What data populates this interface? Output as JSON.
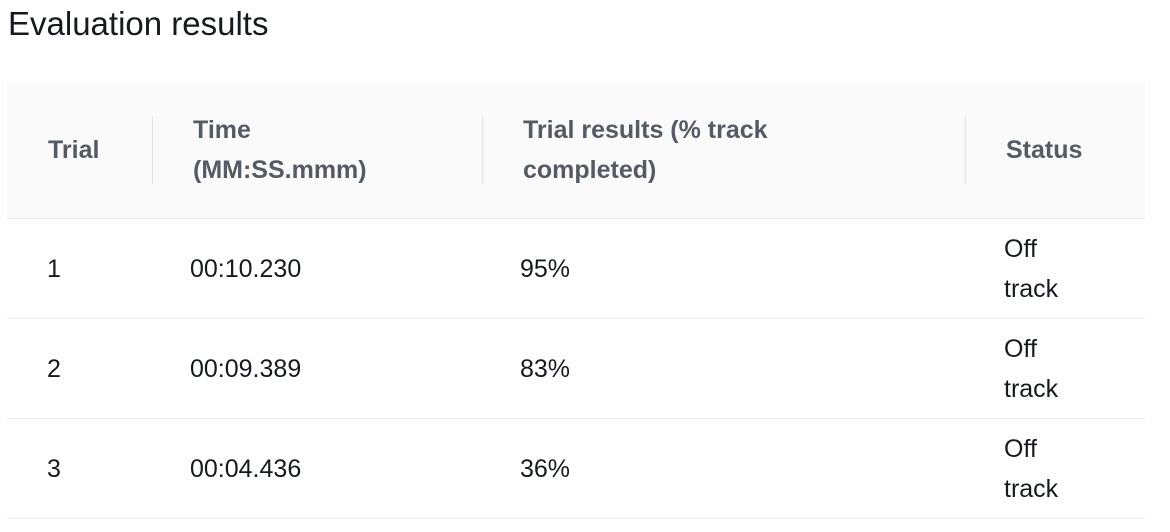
{
  "page": {
    "title": "Evaluation results"
  },
  "table": {
    "headers": {
      "trial": "Trial",
      "time": "Time (MM:SS.mmm)",
      "result": "Trial results (% track completed)",
      "status": "Status"
    },
    "rows": [
      {
        "trial": "1",
        "time": "00:10.230",
        "result": "95%",
        "status": "Off track"
      },
      {
        "trial": "2",
        "time": "00:09.389",
        "result": "83%",
        "status": "Off track"
      },
      {
        "trial": "3",
        "time": "00:04.436",
        "result": "36%",
        "status": "Off track"
      }
    ]
  },
  "colors": {
    "header_bg": "#fafafa",
    "header_text": "#545b64",
    "body_text": "#16191f",
    "divider": "#eaeded"
  }
}
